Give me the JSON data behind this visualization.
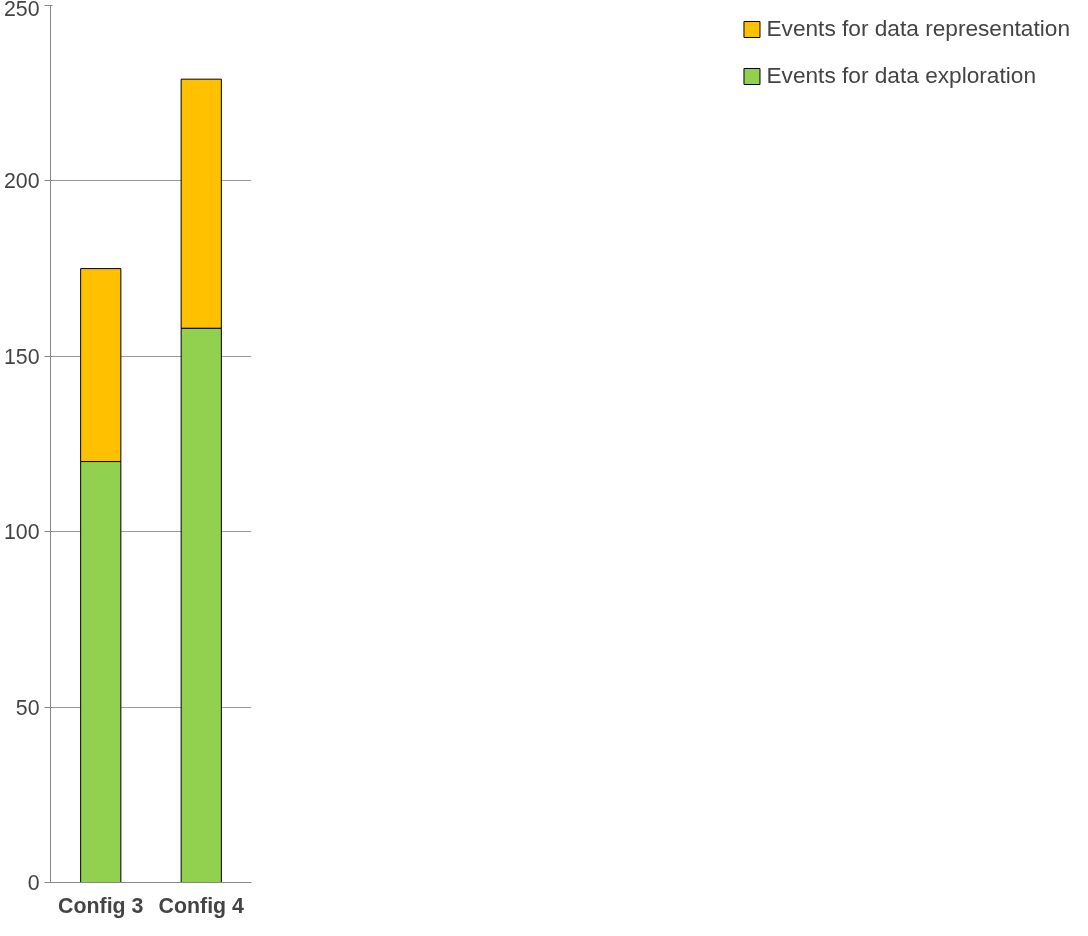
{
  "chart_data": {
    "type": "bar",
    "stacked": true,
    "categories": [
      "Config 3",
      "Config 4"
    ],
    "series": [
      {
        "name": "Events for data exploration",
        "color": "#92d050",
        "values": [
          120,
          158
        ]
      },
      {
        "name": "Events for data representation",
        "color": "#ffc000",
        "values": [
          55,
          71
        ]
      }
    ],
    "ylim": [
      0,
      250
    ],
    "yticks": [
      0,
      50,
      100,
      150,
      200,
      250
    ],
    "grid": "y",
    "legend": "right"
  }
}
